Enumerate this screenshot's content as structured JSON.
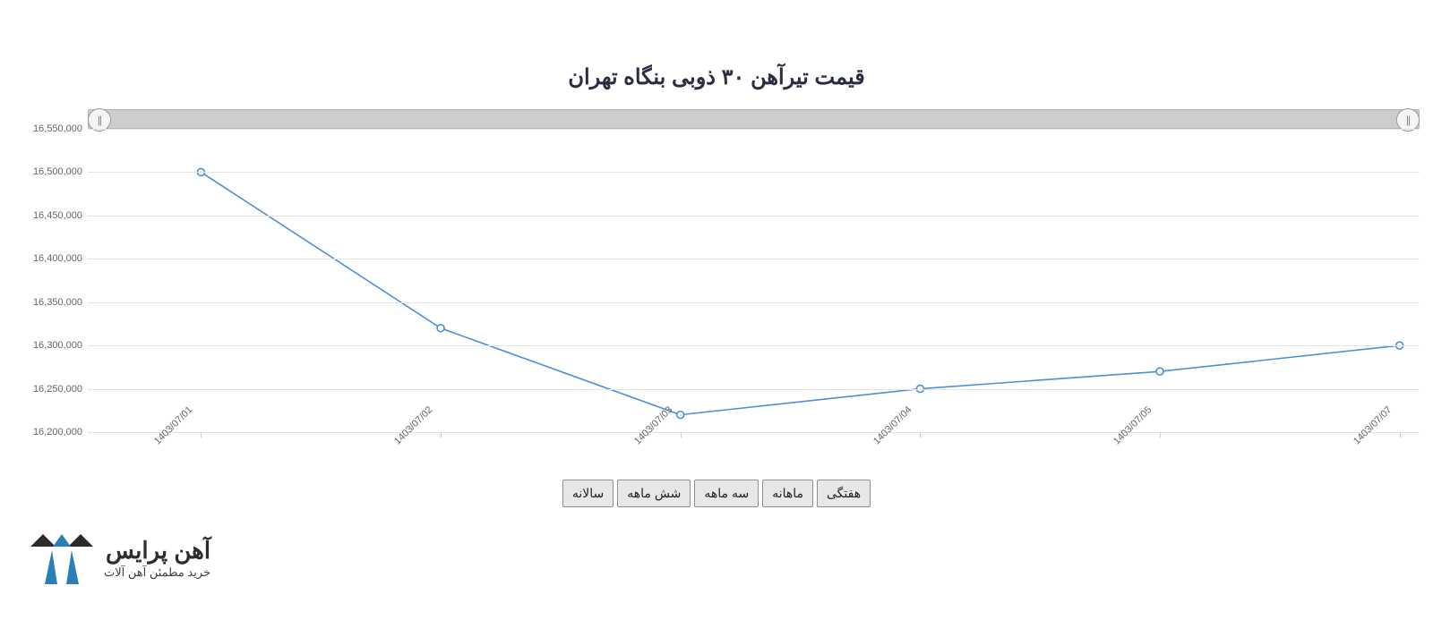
{
  "title": "قیمت تیرآهن ۳۰ ذوبی بنگاه تهران",
  "chart": {
    "type": "line",
    "x_labels": [
      "1403/07/01",
      "1403/07/02",
      "1403/07/03",
      "1403/07/04",
      "1403/07/05",
      "1403/07/07"
    ],
    "values": [
      16500000,
      16320000,
      16220000,
      16250000,
      16270000,
      16300000
    ],
    "ylim": [
      16200000,
      16550000
    ],
    "ytick_step": 50000,
    "y_ticks": [
      16200000,
      16250000,
      16300000,
      16350000,
      16400000,
      16450000,
      16500000,
      16550000
    ],
    "y_tick_labels": [
      "16,200,000",
      "16,250,000",
      "16,300,000",
      "16,350,000",
      "16,400,000",
      "16,450,000",
      "16,500,000",
      "16,550,000"
    ],
    "line_color": "#4a90d9",
    "line_width": 1.6,
    "marker_style": "circle-open",
    "marker_size": 4,
    "marker_stroke": "#4a90d9",
    "marker_fill": "#ffffff",
    "grid_color": "#e4e4e4",
    "axis_color": "#d8d8d8",
    "background_color": "#ffffff",
    "label_color": "#666666",
    "label_fontsize": 11,
    "xlabel_rotation_deg": -45,
    "title_color": "#2b2d42",
    "title_fontsize": 24,
    "navigator_bg": "#cdcdcd",
    "navigator_border": "#b5b5b5",
    "handle_bg": "#f5f5f5",
    "handle_border": "#9a9a9a"
  },
  "range_buttons": [
    "هفتگی",
    "ماهانه",
    "سه ماهه",
    "شش ماهه",
    "سالانه"
  ],
  "button_style": {
    "bg": "#e7e7e7",
    "border": "#8f8f8f",
    "text": "#232323",
    "fontsize": 14
  },
  "logo": {
    "brand": "آهن پرایس",
    "tagline": "خرید مطمئن آهن آلات",
    "mark_colors": {
      "blue": "#2a7fb8",
      "dark": "#2a2a2a"
    }
  }
}
